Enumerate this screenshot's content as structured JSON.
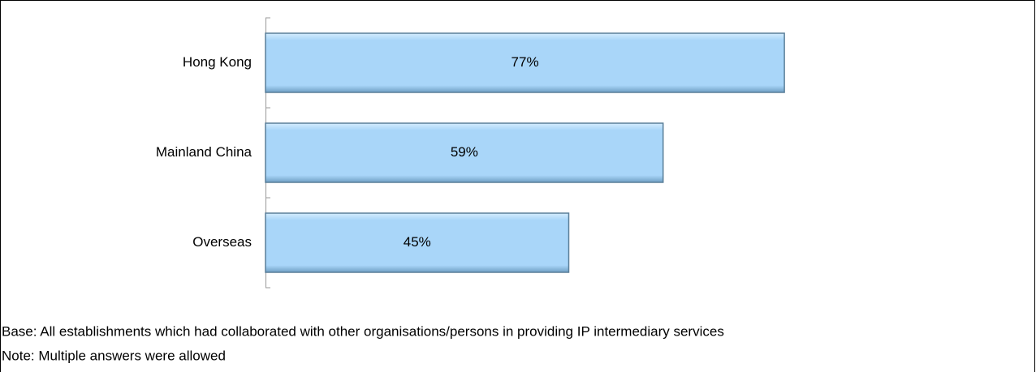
{
  "chart_data": {
    "type": "bar",
    "orientation": "horizontal",
    "categories": [
      "Hong Kong",
      "Mainland China",
      "Overseas"
    ],
    "values": [
      77,
      59,
      45
    ],
    "value_labels": [
      "77%",
      "59%",
      "45%"
    ],
    "color": "#a9d6f9",
    "notes": [
      "Base: All establishments which had collaborated with other organisations/persons in providing IP intermediary services",
      "Note: Multiple answers were allowed"
    ]
  }
}
